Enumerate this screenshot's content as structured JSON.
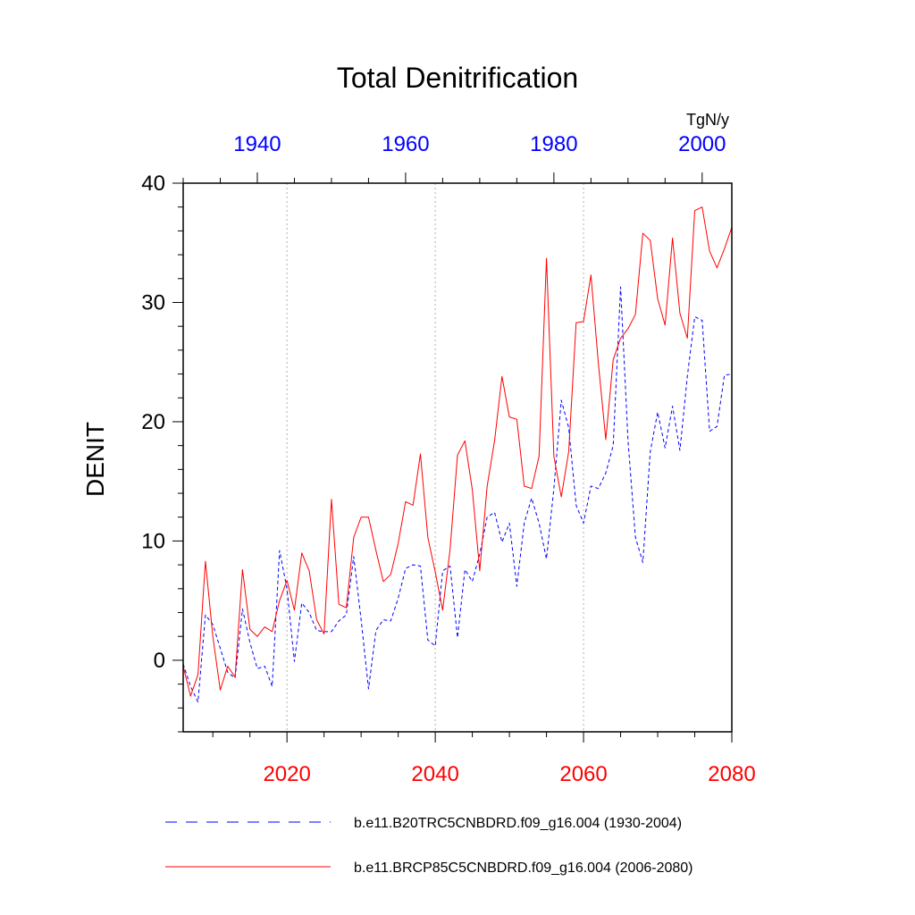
{
  "chart_data": {
    "type": "line",
    "title": "Total Denitrification",
    "ylabel": "DENIT",
    "units": "TgN/y",
    "ylim": [
      -6,
      40
    ],
    "yticks": [
      0,
      10,
      20,
      30,
      40
    ],
    "ytick_labels": [
      "0",
      "10",
      "20",
      "30",
      "40"
    ],
    "grid_vertical_dotted": true,
    "bottom_axis": {
      "range": [
        2006,
        2080
      ],
      "ticks": [
        2020,
        2040,
        2060,
        2080
      ],
      "tick_labels": [
        "2020",
        "2040",
        "2060",
        "2080"
      ],
      "color": "#ff0000"
    },
    "top_axis": {
      "range": [
        1930,
        2004
      ],
      "ticks": [
        1940,
        1960,
        1980,
        2000
      ],
      "tick_labels": [
        "1940",
        "1960",
        "1980",
        "2000"
      ],
      "color": "#0000ff"
    },
    "legend_position": "bottom",
    "series": [
      {
        "name": "b.e11.B20TRC5CNBDRD.f09_g16.004 (1930-2004)",
        "color": "#0000ff",
        "dash": "dashed",
        "x_start": 1930,
        "values": [
          -0.3,
          -2.2,
          -3.5,
          3.8,
          3.0,
          1.0,
          -1.0,
          -1.5,
          4.3,
          1.5,
          -0.7,
          -0.5,
          -2.2,
          9.2,
          6.0,
          -0.1,
          4.8,
          4.0,
          2.5,
          2.4,
          2.4,
          3.3,
          3.8,
          8.7,
          3.4,
          -2.4,
          2.5,
          3.4,
          3.3,
          5.2,
          7.7,
          8.0,
          7.9,
          1.7,
          1.2,
          7.5,
          7.9,
          1.9,
          7.6,
          6.6,
          8.9,
          12.0,
          12.4,
          9.9,
          11.5,
          6.2,
          11.5,
          13.6,
          11.5,
          8.5,
          14.4,
          21.8,
          19.5,
          13.0,
          11.5,
          14.6,
          14.4,
          15.7,
          18.0,
          31.3,
          18.4,
          10.3,
          8.2,
          17.5,
          20.8,
          17.8,
          21.3,
          17.6,
          23.8,
          28.8,
          28.5,
          19.2,
          19.6,
          23.9,
          24.0
        ]
      },
      {
        "name": "b.e11.BRCP85C5CNBDRD.f09_g16.004 (2006-2080)",
        "color": "#ff0000",
        "dash": "solid",
        "x_start": 2006,
        "values": [
          -0.5,
          -3.0,
          -1.2,
          8.3,
          2.0,
          -2.5,
          -0.5,
          -1.4,
          7.6,
          2.6,
          2.0,
          2.8,
          2.4,
          5.0,
          6.7,
          4.2,
          9.0,
          7.5,
          3.4,
          2.2,
          13.5,
          4.7,
          4.4,
          10.3,
          12.0,
          12.0,
          9.2,
          6.6,
          7.2,
          9.8,
          13.3,
          13.0,
          17.3,
          10.3,
          7.4,
          4.2,
          9.3,
          17.2,
          18.4,
          14.3,
          7.5,
          14.6,
          18.4,
          23.8,
          20.4,
          20.2,
          14.6,
          14.4,
          17.1,
          33.7,
          17.1,
          13.7,
          17.5,
          28.3,
          28.4,
          32.3,
          24.9,
          18.5,
          25.2,
          27.0,
          27.8,
          29.0,
          35.8,
          35.2,
          30.3,
          28.1,
          35.4,
          29.1,
          27.0,
          37.7,
          38.0,
          34.3,
          32.9,
          34.5,
          36.3
        ]
      }
    ]
  }
}
